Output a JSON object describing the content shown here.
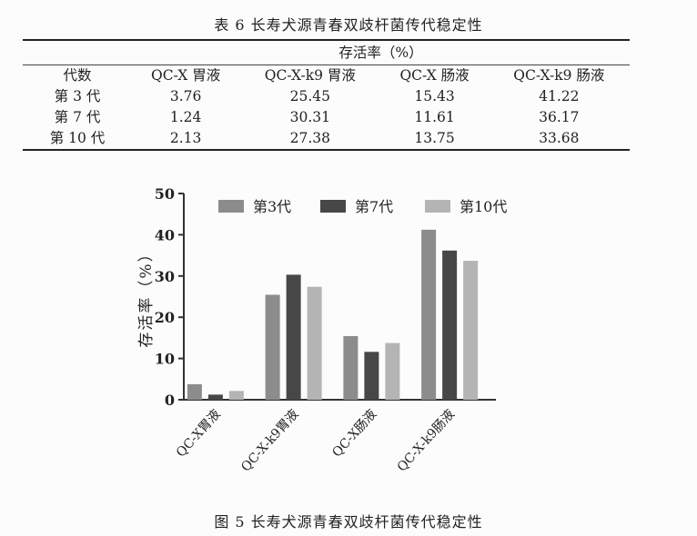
{
  "table": {
    "caption": "表 6  长寿犬源青春双歧杆菌传代稳定性",
    "super_header": "存活率（%）",
    "columns": [
      "代数",
      "QC-X 胃液",
      "QC-X-k9 胃液",
      "QC-X 肠液",
      "QC-X-k9 肠液"
    ],
    "rows": [
      [
        "第 3 代",
        "3.76",
        "25.45",
        "15.43",
        "41.22"
      ],
      [
        "第 7 代",
        "1.24",
        "30.31",
        "11.61",
        "36.17"
      ],
      [
        "第 10 代",
        "2.13",
        "27.38",
        "13.75",
        "33.68"
      ]
    ]
  },
  "figure": {
    "caption": "图 5  长寿犬源青春双歧杆菌传代稳定性"
  },
  "chart_data": {
    "type": "bar",
    "categories": [
      "QC-X胃液",
      "QC-X-k9胃液",
      "QC-X肠液",
      "QC-X-k9肠液"
    ],
    "series": [
      {
        "name": "第3代",
        "values": [
          3.76,
          25.45,
          15.43,
          41.22
        ],
        "color": "#8c8c8c"
      },
      {
        "name": "第7代",
        "values": [
          1.24,
          30.31,
          11.61,
          36.17
        ],
        "color": "#474747"
      },
      {
        "name": "第10代",
        "values": [
          2.13,
          27.38,
          13.75,
          33.68
        ],
        "color": "#b4b4b4"
      }
    ],
    "ylabel": "存活率（%）",
    "ylim": [
      0,
      50
    ],
    "yticks": [
      0,
      10,
      20,
      30,
      40,
      50
    ],
    "grid": false,
    "legend": "top"
  }
}
